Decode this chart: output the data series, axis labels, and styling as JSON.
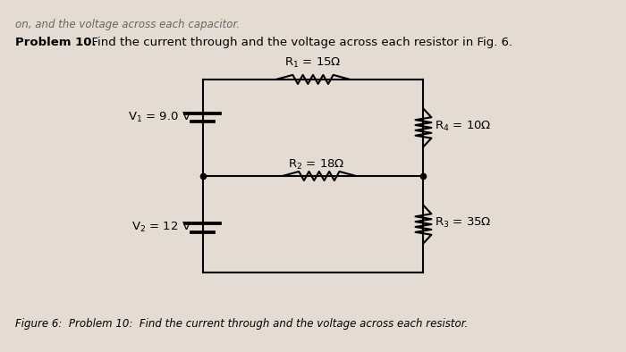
{
  "bg_color": "#e8e0d8",
  "title_text_bold": "Problem 10.",
  "title_text_normal": "  Find the current through and the voltage across each resistor in Fig. 6.",
  "top_text": "on, and the voltage across each capacitor.",
  "caption_text": "Figure 6:  Problem 10:  Find the current through and the voltage across each resistor.",
  "R1_label": "R$_1$ = 15Ω",
  "R2_label": "R$_2$ = 18Ω",
  "R3_label": "R$_3$ = 35Ω",
  "R4_label": "R$_4$ = 10Ω",
  "V1_label": "V$_1$ = 9.0 V",
  "V2_label": "V$_2$ = 12 V",
  "line_color": "#000000",
  "text_color": "#000000",
  "fig_bg": "#e4dbd2"
}
